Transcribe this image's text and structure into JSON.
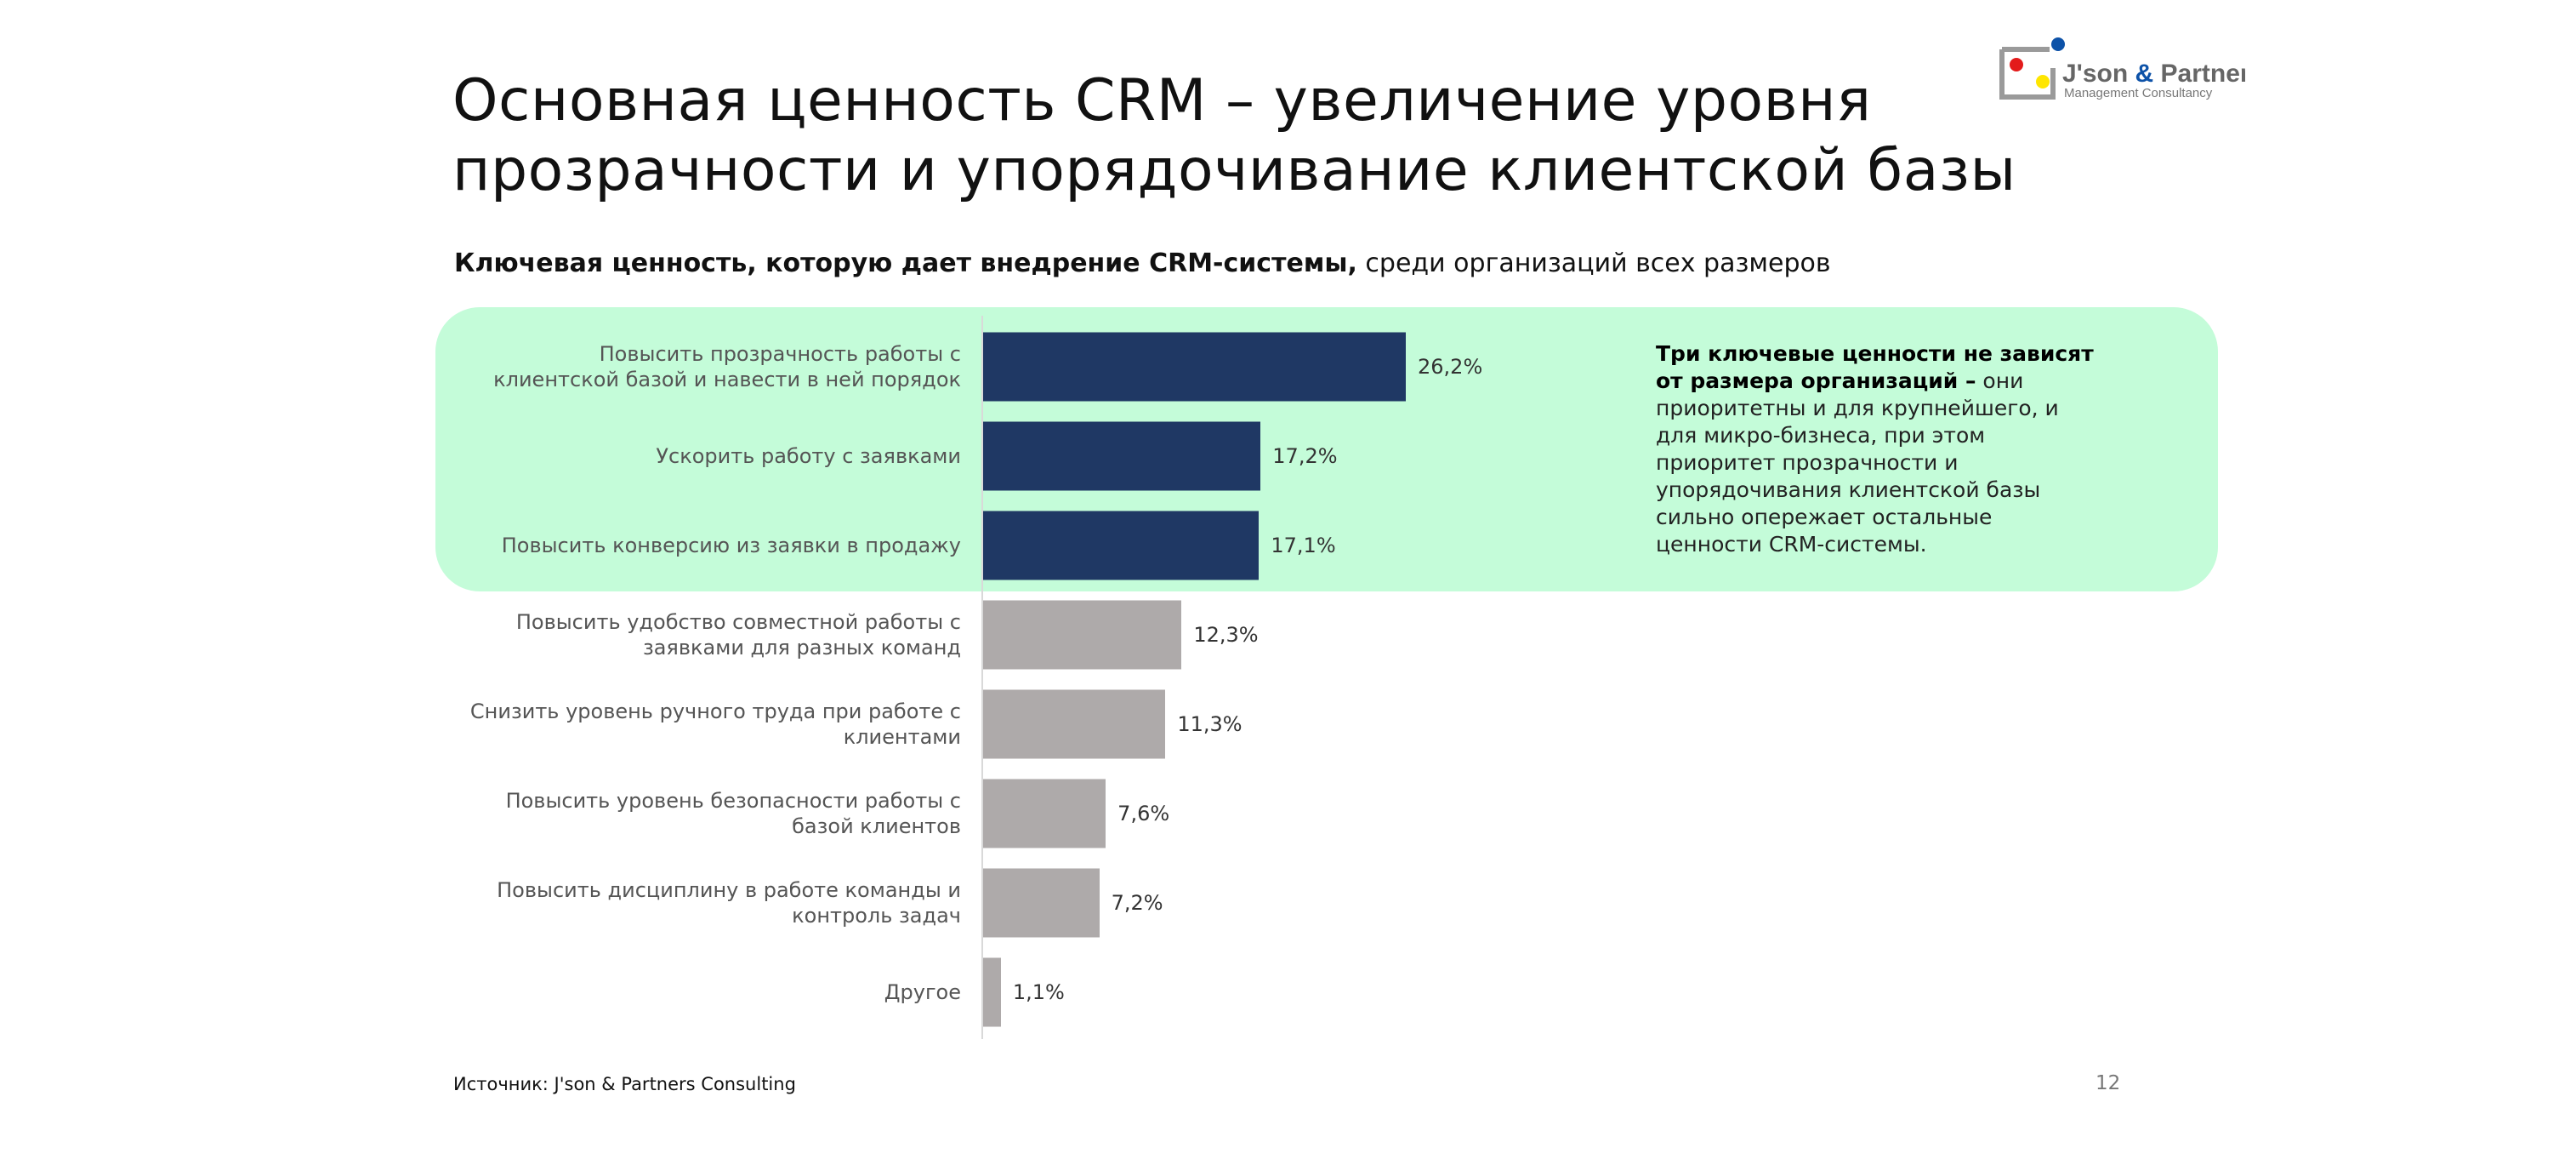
{
  "title": "Основная ценность CRM – увеличение уровня\nпрозрачности и упорядочивание клиентской базы",
  "subtitle": {
    "bold": "Ключевая ценность, которую дает внедрение CRM-системы,",
    "regular": " среди организаций всех размеров"
  },
  "logo": {
    "name": "J'son & Partners",
    "tagline": "Management Consultancy"
  },
  "colors": {
    "highlight_bar": "#1f3864",
    "other_bar": "#aeaaaa",
    "panel": "#c4fcd9"
  },
  "chart_data": {
    "type": "bar",
    "orientation": "horizontal",
    "categories": [
      "Повысить прозрачность работы с\nклиентской базой и навести в ней порядок",
      "Ускорить работу с заявками",
      "Повысить конверсию из заявки в продажу",
      "Повысить удобство совместной работы с\nзаявками для разных команд",
      "Снизить уровень ручного труда при работе с\nклиентами",
      "Повысить уровень безопасности работы с\nбазой клиентов",
      "Повысить дисциплину в работе команды и\nконтроль задач",
      "Другое"
    ],
    "values": [
      26.2,
      17.2,
      17.1,
      12.3,
      11.3,
      7.6,
      7.2,
      1.1
    ],
    "value_labels": [
      "26,2%",
      "17,2%",
      "17,1%",
      "12,3%",
      "11,3%",
      "7,6%",
      "7,2%",
      "1,1%"
    ],
    "highlighted": [
      true,
      true,
      true,
      false,
      false,
      false,
      false,
      false
    ],
    "unit": "%"
  },
  "note": {
    "bold": "Три ключевые ценности не зависят\nот размера организаций –",
    "regular": " они\nприоритетны и для крупнейшего, и\nдля микро-бизнеса, при этом\nприоритет прозрачности и\nупорядочивания клиентской базы\nсильно опережает остальные\nценности CRM-системы."
  },
  "source": "Источник: J'son & Partners Consulting",
  "page_number": "12"
}
